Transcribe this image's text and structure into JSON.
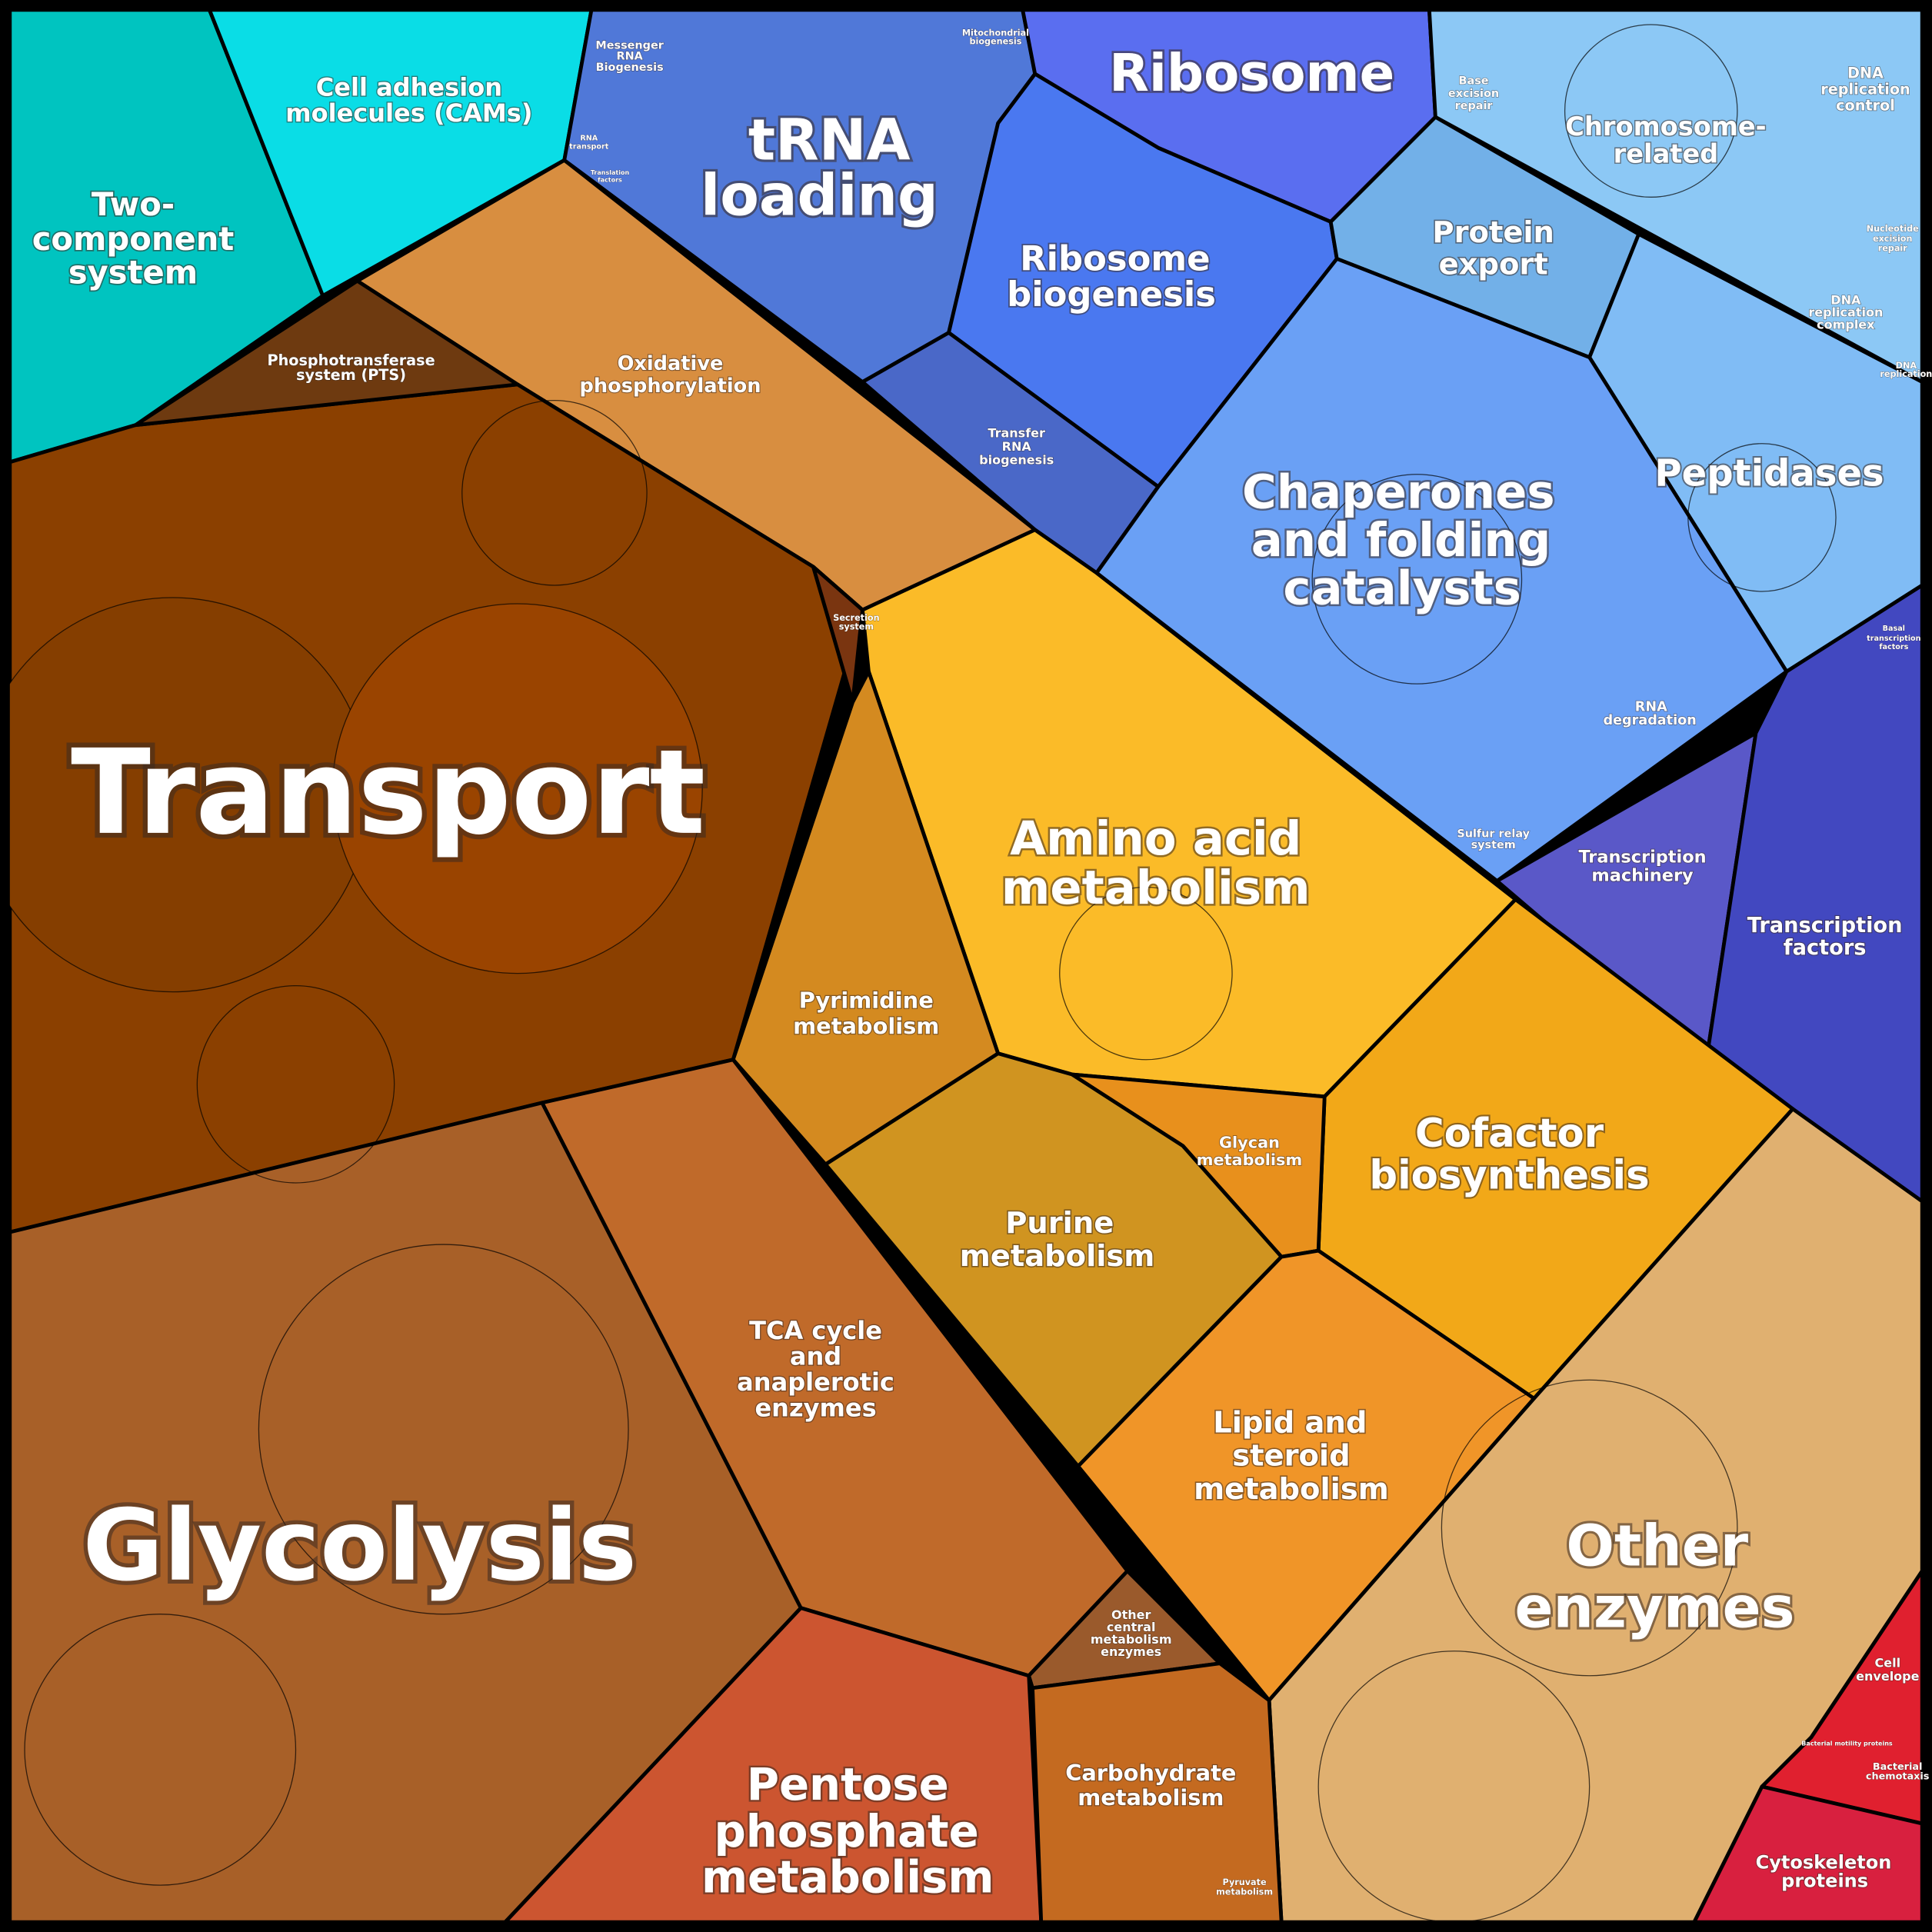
{
  "regions": [
    {
      "lines": [
        "Transport"
      ]
    },
    {
      "lines": [
        "Glycolysis"
      ]
    },
    {
      "lines": [
        "tRNA",
        "loading"
      ]
    },
    {
      "lines": [
        "Ribosome"
      ]
    },
    {
      "lines": [
        "Ribosome",
        "biogenesis"
      ]
    },
    {
      "lines": [
        "Chromosome-",
        "related"
      ]
    },
    {
      "lines": [
        "Protein",
        "export"
      ]
    },
    {
      "lines": [
        "Peptidases"
      ]
    },
    {
      "lines": [
        "Chaperones",
        "and folding",
        "catalysts"
      ]
    },
    {
      "lines": [
        "Amino acid",
        "metabolism"
      ]
    },
    {
      "lines": [
        "Cofactor",
        "biosynthesis"
      ]
    },
    {
      "lines": [
        "Purine",
        "metabolism"
      ]
    },
    {
      "lines": [
        "Lipid and",
        "steroid",
        "metabolism"
      ]
    },
    {
      "lines": [
        "Other",
        "enzymes"
      ]
    },
    {
      "lines": [
        "Pentose",
        "phosphate",
        "metabolism"
      ]
    },
    {
      "lines": [
        "TCA cycle",
        "and",
        "anaplerotic",
        "enzymes"
      ]
    },
    {
      "lines": [
        "Carbohydrate",
        "metabolism"
      ]
    },
    {
      "lines": [
        "Pyrimidine",
        "metabolism"
      ]
    },
    {
      "lines": [
        "Glycan",
        "metabolism"
      ]
    },
    {
      "lines": [
        "Two-",
        "component",
        "system"
      ]
    },
    {
      "lines": [
        "Cell adhesion",
        "molecules (CAMs)"
      ]
    },
    {
      "lines": [
        "Oxidative",
        "phosphorylation"
      ]
    },
    {
      "lines": [
        "Phosphotransferase",
        "system (PTS)"
      ]
    },
    {
      "lines": [
        "Transcription",
        "machinery"
      ]
    },
    {
      "lines": [
        "Transcription",
        "factors"
      ]
    },
    {
      "lines": [
        "RNA",
        "degradation"
      ]
    },
    {
      "lines": [
        "Transfer",
        "RNA",
        "biogenesis"
      ]
    },
    {
      "lines": [
        "Secretion",
        "system"
      ]
    },
    {
      "lines": [
        "Messenger",
        "RNA",
        "Biogenesis"
      ]
    },
    {
      "lines": [
        "Mitochondrial",
        "biogenesis"
      ]
    },
    {
      "lines": [
        "Base",
        "excision",
        "repair"
      ]
    },
    {
      "lines": [
        "DNA",
        "replication",
        "control"
      ]
    },
    {
      "lines": [
        "Nucleotide",
        "excision",
        "repair"
      ]
    },
    {
      "lines": [
        "DNA",
        "replication",
        "complex"
      ]
    },
    {
      "lines": [
        "DNA",
        "replication"
      ]
    },
    {
      "lines": [
        "Sulfur relay",
        "system"
      ]
    },
    {
      "lines": [
        "Basal",
        "transcription",
        "factors"
      ]
    },
    {
      "lines": [
        "Other",
        "central",
        "metabolism",
        "enzymes"
      ]
    },
    {
      "lines": [
        "Pyruvate",
        "metabolism"
      ]
    },
    {
      "lines": [
        "Cell",
        "envelope"
      ]
    },
    {
      "lines": [
        "Bacterial",
        "chemotaxis"
      ]
    },
    {
      "lines": [
        "Cytoskeleton",
        "proteins"
      ]
    },
    {
      "lines": [
        "RNA",
        "transport"
      ]
    },
    {
      "lines": [
        "Translation",
        "factors"
      ]
    },
    {
      "lines": [
        "Bacterial motility proteins"
      ]
    }
  ]
}
